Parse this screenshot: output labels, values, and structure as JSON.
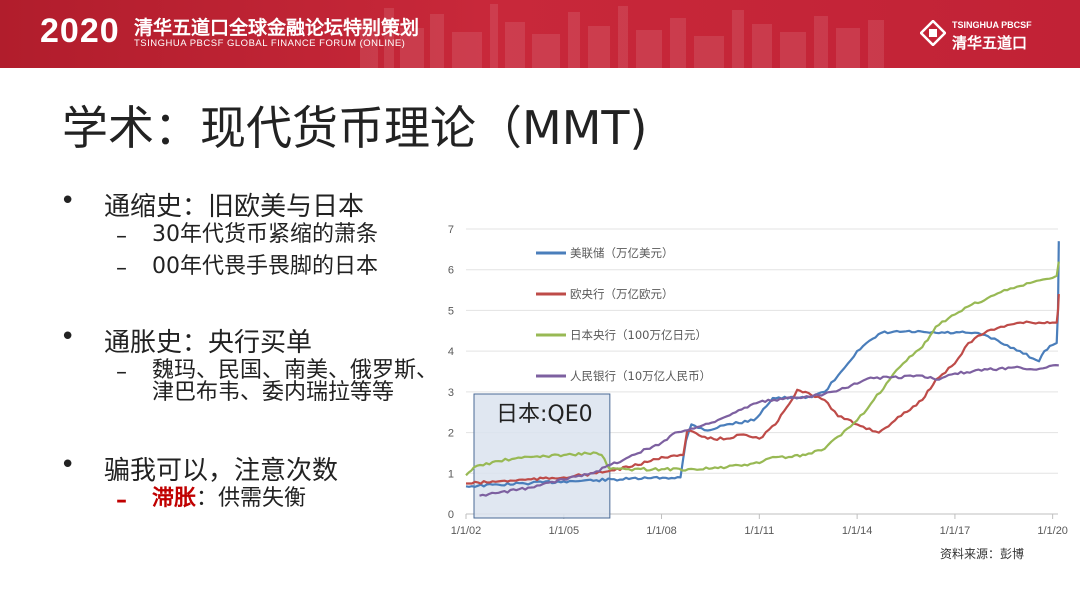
{
  "banner": {
    "year": "2020",
    "title_cn": "清华五道口全球金融论坛特别策划",
    "title_en": "TSINGHUA PBCSF GLOBAL FINANCE FORUM (ONLINE)",
    "logo_en": "TSINGHUA PBCSF",
    "logo_cn": "清华五道口"
  },
  "slide": {
    "title": "学术：现代货币理论（MMT)",
    "bullets": [
      {
        "marker": "•",
        "text": "通缩史：旧欧美与日本"
      },
      {
        "marker": "–",
        "text": "30年代货币紧缩的萧条"
      },
      {
        "marker": "–",
        "text": "00年代畏手畏脚的日本"
      },
      {
        "marker": "•",
        "text": "通胀史：央行买单"
      },
      {
        "marker": "–",
        "text": "魏玛、民国、南美、俄罗斯、"
      },
      {
        "marker": "",
        "text": "津巴布韦、委内瑞拉等等"
      },
      {
        "marker": "•",
        "text": "骗我可以，注意次数"
      },
      {
        "marker": "–",
        "text": "滞胀",
        "text2": "：供需失衡"
      }
    ]
  },
  "source_note": "资料来源：彭博",
  "chart_data": {
    "type": "line",
    "annotation": "日本:QE0",
    "annotation_range": [
      "2002-01-01",
      "2006-06-01"
    ],
    "xlim": [
      "2002-01-01",
      "2020-03-01"
    ],
    "ylim": [
      0,
      7
    ],
    "yticks": [
      0,
      1,
      2,
      3,
      4,
      5,
      6,
      7
    ],
    "xticks": [
      {
        "date": "2002-01-01",
        "label": "1/1/02"
      },
      {
        "date": "2005-01-01",
        "label": "1/1/05"
      },
      {
        "date": "2008-01-01",
        "label": "1/1/08"
      },
      {
        "date": "2011-01-01",
        "label": "1/1/11"
      },
      {
        "date": "2014-01-01",
        "label": "1/1/14"
      },
      {
        "date": "2017-01-01",
        "label": "1/1/17"
      },
      {
        "date": "2020-01-01",
        "label": "1/1/20"
      }
    ],
    "grid": true,
    "legend_position": "top-left",
    "series": [
      {
        "name": "美联储（万亿美元）",
        "color": "#4a7ebb",
        "points": [
          [
            "2002-01-01",
            0.68
          ],
          [
            "2003-01-01",
            0.72
          ],
          [
            "2004-01-01",
            0.76
          ],
          [
            "2005-01-01",
            0.8
          ],
          [
            "2006-01-01",
            0.83
          ],
          [
            "2007-01-01",
            0.86
          ],
          [
            "2007-08-01",
            0.88
          ],
          [
            "2008-08-01",
            0.9
          ],
          [
            "2008-10-01",
            1.8
          ],
          [
            "2008-12-01",
            2.2
          ],
          [
            "2009-06-01",
            2.05
          ],
          [
            "2010-01-01",
            2.2
          ],
          [
            "2010-11-01",
            2.3
          ],
          [
            "2011-06-01",
            2.85
          ],
          [
            "2012-06-01",
            2.85
          ],
          [
            "2013-01-01",
            3.0
          ],
          [
            "2013-06-01",
            3.4
          ],
          [
            "2014-01-01",
            4.0
          ],
          [
            "2014-10-01",
            4.45
          ],
          [
            "2015-06-01",
            4.48
          ],
          [
            "2016-06-01",
            4.45
          ],
          [
            "2017-06-01",
            4.45
          ],
          [
            "2017-12-01",
            4.4
          ],
          [
            "2018-06-01",
            4.2
          ],
          [
            "2019-01-01",
            4.0
          ],
          [
            "2019-08-01",
            3.75
          ],
          [
            "2019-10-01",
            4.0
          ],
          [
            "2020-01-01",
            4.15
          ],
          [
            "2020-02-15",
            4.2
          ],
          [
            "2020-03-01",
            5.0
          ],
          [
            "2020-03-10",
            6.7
          ]
        ]
      },
      {
        "name": "欧央行（万亿欧元）",
        "color": "#be4b48",
        "points": [
          [
            "2002-01-01",
            0.75
          ],
          [
            "2003-01-01",
            0.8
          ],
          [
            "2004-01-01",
            0.85
          ],
          [
            "2005-01-01",
            0.9
          ],
          [
            "2006-01-01",
            1.0
          ],
          [
            "2007-01-01",
            1.15
          ],
          [
            "2007-09-01",
            1.3
          ],
          [
            "2008-01-01",
            1.4
          ],
          [
            "2008-09-01",
            1.45
          ],
          [
            "2008-10-15",
            2.05
          ],
          [
            "2009-06-01",
            1.85
          ],
          [
            "2010-01-01",
            1.85
          ],
          [
            "2010-06-01",
            1.95
          ],
          [
            "2011-01-01",
            1.85
          ],
          [
            "2011-07-01",
            2.2
          ],
          [
            "2011-12-01",
            2.7
          ],
          [
            "2012-03-01",
            3.05
          ],
          [
            "2012-06-01",
            3.0
          ],
          [
            "2013-01-01",
            2.8
          ],
          [
            "2013-06-01",
            2.4
          ],
          [
            "2014-01-01",
            2.2
          ],
          [
            "2014-09-01",
            2.0
          ],
          [
            "2015-03-01",
            2.3
          ],
          [
            "2016-01-01",
            2.8
          ],
          [
            "2016-06-01",
            3.3
          ],
          [
            "2017-01-01",
            3.7
          ],
          [
            "2017-06-01",
            4.2
          ],
          [
            "2018-01-01",
            4.5
          ],
          [
            "2018-06-01",
            4.6
          ],
          [
            "2019-01-01",
            4.7
          ],
          [
            "2019-08-01",
            4.7
          ],
          [
            "2020-01-01",
            4.7
          ],
          [
            "2020-02-15",
            4.7
          ],
          [
            "2020-03-01",
            5.0
          ],
          [
            "2020-03-10",
            5.4
          ]
        ]
      },
      {
        "name": "日本央行（100万亿日元）",
        "color": "#98b954",
        "points": [
          [
            "2002-01-01",
            0.95
          ],
          [
            "2002-04-01",
            1.15
          ],
          [
            "2003-01-01",
            1.3
          ],
          [
            "2003-06-01",
            1.35
          ],
          [
            "2004-01-01",
            1.4
          ],
          [
            "2005-01-01",
            1.45
          ],
          [
            "2006-01-01",
            1.5
          ],
          [
            "2006-03-01",
            1.45
          ],
          [
            "2006-06-01",
            1.1
          ],
          [
            "2007-01-01",
            1.1
          ],
          [
            "2008-01-01",
            1.1
          ],
          [
            "2009-01-01",
            1.1
          ],
          [
            "2010-01-01",
            1.15
          ],
          [
            "2011-01-01",
            1.25
          ],
          [
            "2011-06-01",
            1.4
          ],
          [
            "2012-01-01",
            1.4
          ],
          [
            "2012-06-01",
            1.45
          ],
          [
            "2013-01-01",
            1.6
          ],
          [
            "2013-06-01",
            1.9
          ],
          [
            "2014-01-01",
            2.3
          ],
          [
            "2014-06-01",
            2.7
          ],
          [
            "2015-01-01",
            3.3
          ],
          [
            "2015-06-01",
            3.7
          ],
          [
            "2016-01-01",
            4.1
          ],
          [
            "2016-06-01",
            4.6
          ],
          [
            "2017-01-01",
            4.9
          ],
          [
            "2017-06-01",
            5.1
          ],
          [
            "2018-01-01",
            5.3
          ],
          [
            "2018-06-01",
            5.45
          ],
          [
            "2019-01-01",
            5.6
          ],
          [
            "2019-06-01",
            5.7
          ],
          [
            "2020-01-01",
            5.8
          ],
          [
            "2020-02-15",
            5.85
          ],
          [
            "2020-03-10",
            6.2
          ]
        ]
      },
      {
        "name": "人民银行（10万亿人民币）",
        "color": "#7d60a0",
        "points": [
          [
            "2002-06-01",
            0.45
          ],
          [
            "2003-01-01",
            0.52
          ],
          [
            "2004-01-01",
            0.65
          ],
          [
            "2005-01-01",
            0.85
          ],
          [
            "2006-01-01",
            1.05
          ],
          [
            "2007-01-01",
            1.4
          ],
          [
            "2008-01-01",
            1.75
          ],
          [
            "2008-06-01",
            2.0
          ],
          [
            "2009-01-01",
            2.1
          ],
          [
            "2010-01-01",
            2.4
          ],
          [
            "2011-01-01",
            2.75
          ],
          [
            "2012-01-01",
            2.85
          ],
          [
            "2013-01-01",
            2.95
          ],
          [
            "2014-01-01",
            3.2
          ],
          [
            "2014-06-01",
            3.35
          ],
          [
            "2015-01-01",
            3.35
          ],
          [
            "2016-01-01",
            3.4
          ],
          [
            "2016-06-01",
            3.3
          ],
          [
            "2017-01-01",
            3.45
          ],
          [
            "2018-01-01",
            3.55
          ],
          [
            "2019-01-01",
            3.6
          ],
          [
            "2019-06-01",
            3.55
          ],
          [
            "2020-01-01",
            3.65
          ],
          [
            "2020-03-10",
            3.65
          ]
        ]
      }
    ]
  }
}
